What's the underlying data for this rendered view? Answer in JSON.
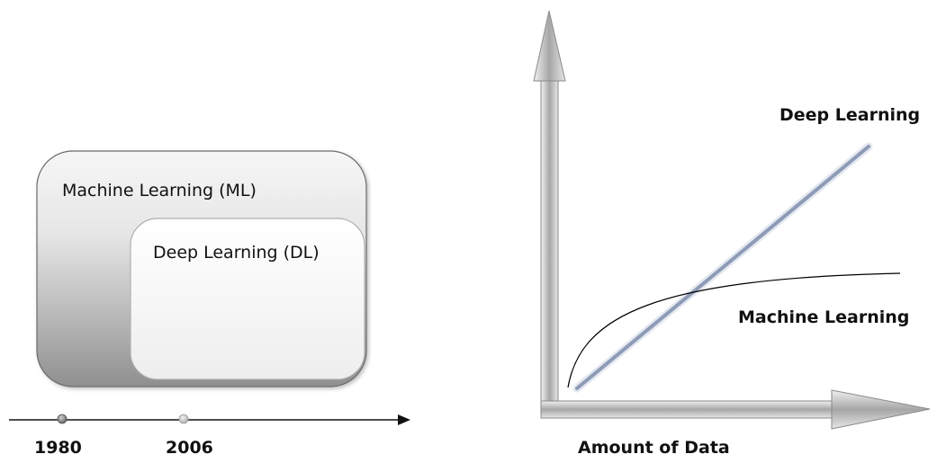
{
  "left_diagram": {
    "outer_box_label": "Machine Learning (ML)",
    "inner_box_label": "Deep Learning (DL)",
    "timeline": {
      "markers": [
        {
          "label": "1980"
        },
        {
          "label": "2006"
        }
      ]
    }
  },
  "right_diagram": {
    "x_axis_label": "Amount of Data",
    "curves": [
      {
        "label": "Deep Learning",
        "shape": "linear",
        "color": "#8e9bb6"
      },
      {
        "label": "Machine Learning",
        "shape": "saturating",
        "color": "#000000"
      }
    ]
  }
}
